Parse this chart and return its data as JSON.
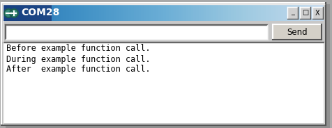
{
  "title": "COM28",
  "window_bg": "#c8c8c8",
  "outer_bg": "#a8a8a8",
  "titlebar_left": "#1a3a8a",
  "titlebar_right": "#8aaad0",
  "border_dark": "#555555",
  "border_light": "#f0f0f0",
  "send_label": "Send",
  "lines": [
    "Before example function call.",
    "During example function call.",
    "After  example function call."
  ],
  "text_color": "#000000",
  "font_size": 8.5,
  "figsize": [
    4.77,
    1.84
  ],
  "dpi": 100
}
